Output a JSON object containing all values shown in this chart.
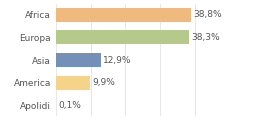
{
  "categories": [
    "Africa",
    "Europa",
    "Asia",
    "America",
    "Apolidi"
  ],
  "values": [
    38.8,
    38.3,
    12.9,
    9.9,
    0.1
  ],
  "labels": [
    "38,8%",
    "38,3%",
    "12,9%",
    "9,9%",
    "0,1%"
  ],
  "bar_colors": [
    "#f0b97e",
    "#b5c98a",
    "#7490b8",
    "#f5d48a",
    "#f0b97e"
  ],
  "background_color": "#ffffff",
  "xlim": [
    0,
    50
  ],
  "bar_height": 0.62,
  "label_fontsize": 6.5,
  "tick_fontsize": 6.5,
  "grid_color": "#dddddd",
  "grid_xticks": [
    0,
    10,
    20,
    30,
    40,
    50
  ]
}
